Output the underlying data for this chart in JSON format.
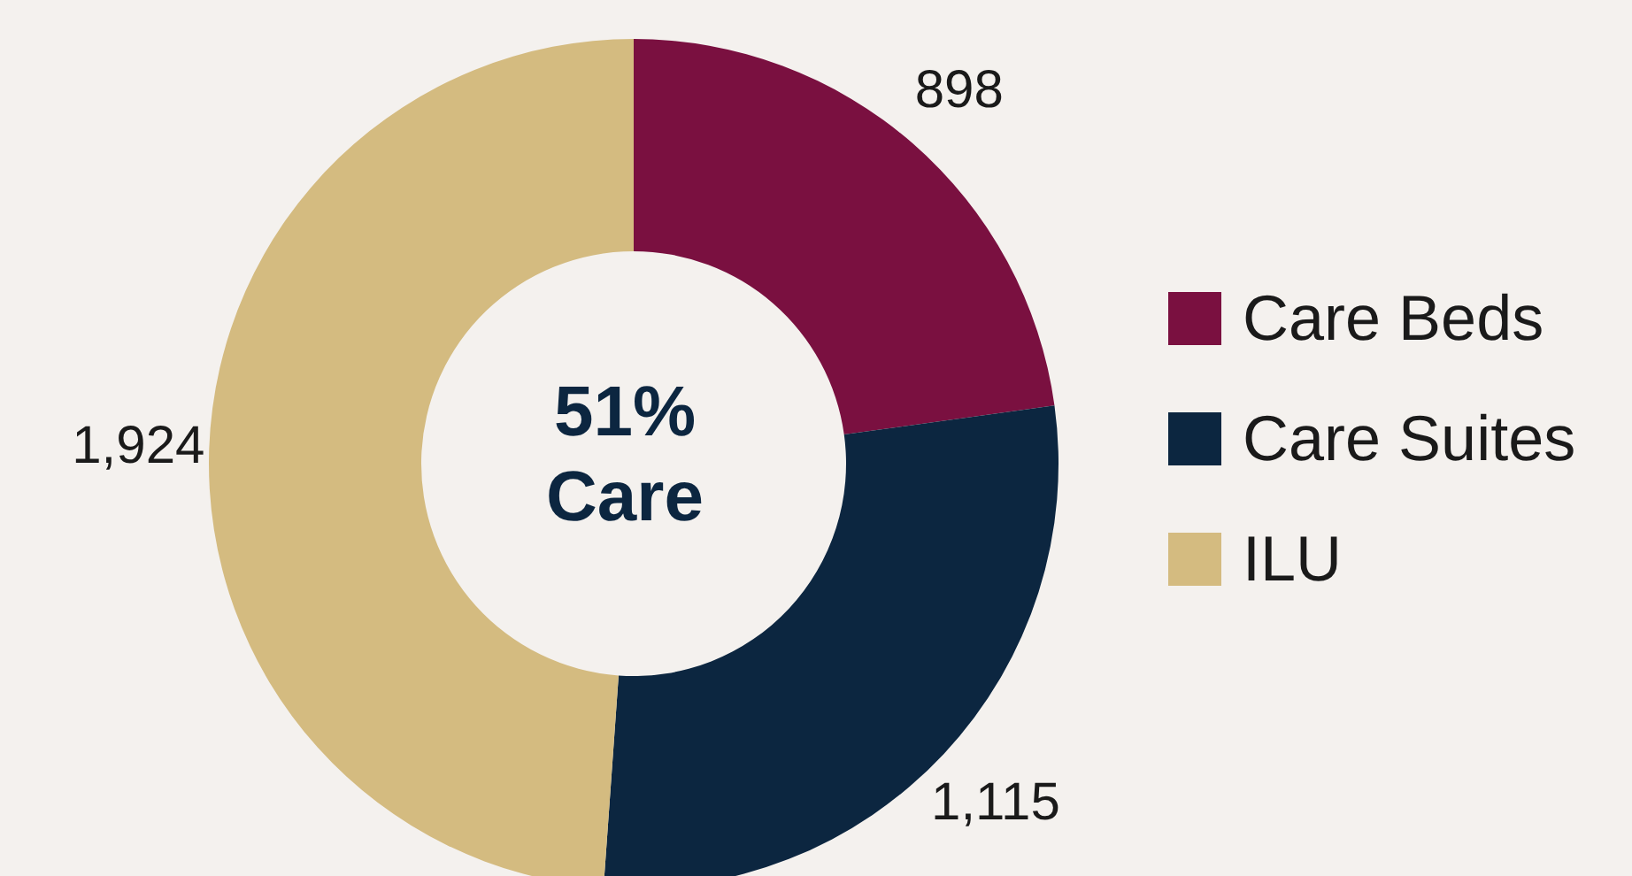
{
  "chart_data": {
    "type": "donut",
    "categories": [
      "Care Beds",
      "Care Suites",
      "ILU"
    ],
    "values": [
      898,
      1115,
      1924
    ],
    "colors": [
      "#7a1040",
      "#0c2640",
      "#d4bb80"
    ],
    "value_labels": [
      "898",
      "1,115",
      "1,924"
    ],
    "annotations": [
      "51%",
      "Care"
    ],
    "legend": "right"
  }
}
